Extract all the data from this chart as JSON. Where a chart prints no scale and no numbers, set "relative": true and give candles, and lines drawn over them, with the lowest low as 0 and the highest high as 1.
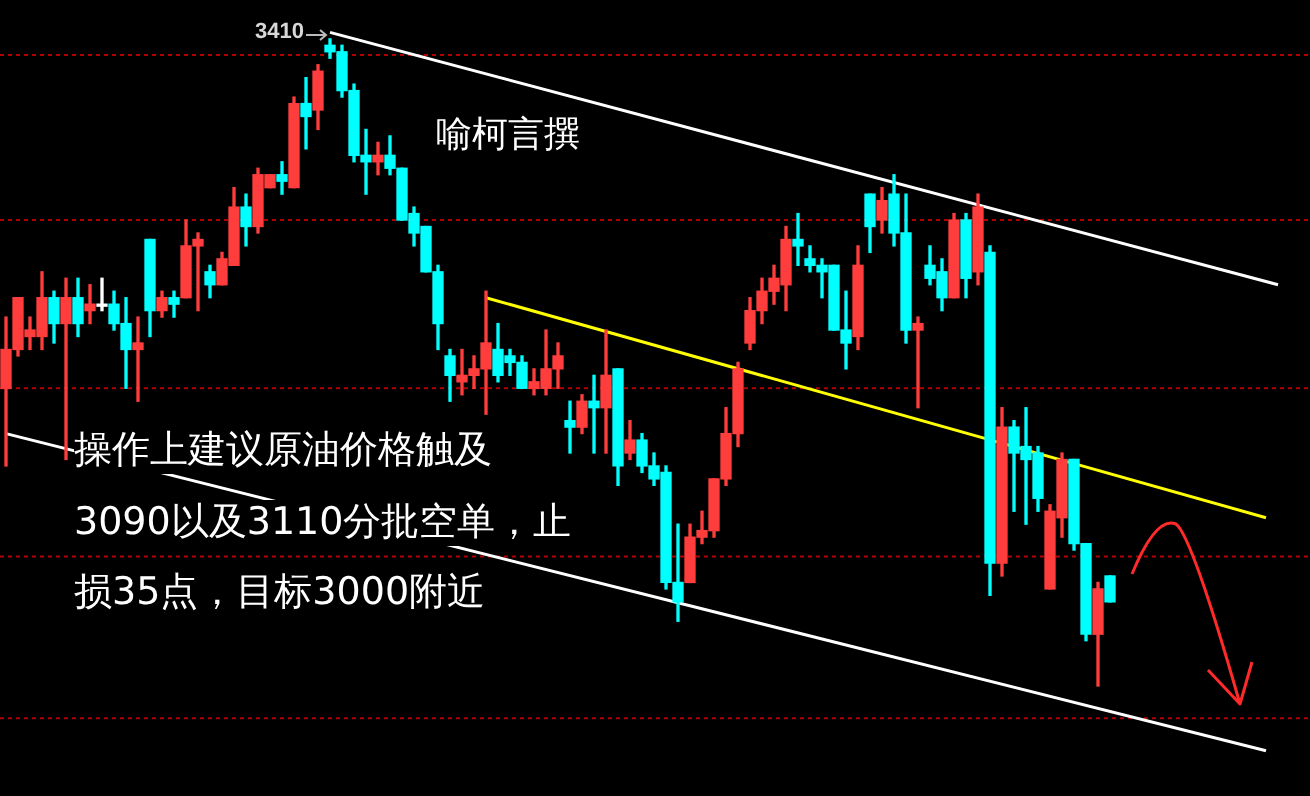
{
  "chart_data": {
    "type": "candlestick",
    "relative": true,
    "categories": [
      null,
      null,
      null,
      null,
      null,
      null,
      null,
      null,
      null,
      null,
      null,
      null,
      null,
      null,
      null,
      null,
      null,
      null,
      null,
      null,
      null,
      null,
      null,
      null,
      null,
      null,
      null,
      null,
      null,
      null,
      null,
      null,
      null,
      null,
      null,
      null,
      null,
      null,
      null,
      null,
      null,
      null,
      null,
      null,
      null,
      null,
      null,
      null,
      null,
      null,
      null,
      null,
      null,
      null,
      null,
      null,
      null,
      null,
      null,
      null,
      null,
      null,
      null,
      null,
      null,
      null,
      null,
      null,
      null,
      null,
      null,
      null,
      null,
      null,
      null,
      null,
      null,
      null,
      null,
      null,
      null,
      null,
      null,
      null,
      null,
      null,
      null,
      null,
      null,
      null,
      null,
      null,
      null,
      null,
      null,
      null,
      null,
      null,
      null,
      null,
      null,
      null,
      null,
      null,
      null,
      null,
      null
    ],
    "ohlc": [
      [
        0.46,
        0.57,
        0.34,
        0.52
      ],
      [
        0.52,
        0.6,
        0.51,
        0.6
      ],
      [
        0.54,
        0.57,
        0.52,
        0.55
      ],
      [
        0.54,
        0.64,
        0.52,
        0.6
      ],
      [
        0.6,
        0.61,
        0.53,
        0.56
      ],
      [
        0.56,
        0.63,
        0.35,
        0.6
      ],
      [
        0.6,
        0.63,
        0.54,
        0.56
      ],
      [
        0.58,
        0.62,
        0.56,
        0.59
      ],
      [
        0.59,
        0.63,
        0.58,
        0.59
      ],
      [
        0.59,
        0.61,
        0.55,
        0.56
      ],
      [
        0.56,
        0.6,
        0.46,
        0.52
      ],
      [
        0.52,
        0.57,
        0.44,
        0.53
      ],
      [
        0.69,
        0.69,
        0.54,
        0.58
      ],
      [
        0.58,
        0.61,
        0.57,
        0.6
      ],
      [
        0.6,
        0.61,
        0.57,
        0.59
      ],
      [
        0.6,
        0.72,
        0.6,
        0.68
      ],
      [
        0.68,
        0.7,
        0.58,
        0.69
      ],
      [
        0.64,
        0.65,
        0.6,
        0.62
      ],
      [
        0.62,
        0.67,
        0.62,
        0.66
      ],
      [
        0.65,
        0.77,
        0.65,
        0.74
      ],
      [
        0.74,
        0.76,
        0.68,
        0.71
      ],
      [
        0.71,
        0.8,
        0.7,
        0.79
      ],
      [
        0.77,
        0.79,
        0.77,
        0.79
      ],
      [
        0.79,
        0.81,
        0.76,
        0.78
      ],
      [
        0.77,
        0.91,
        0.77,
        0.9
      ],
      [
        0.9,
        0.94,
        0.83,
        0.88
      ],
      [
        0.89,
        0.96,
        0.86,
        0.95
      ],
      [
        0.99,
        1,
        0.97,
        0.98
      ],
      [
        0.98,
        0.99,
        0.91,
        0.92
      ],
      [
        0.92,
        0.93,
        0.81,
        0.82
      ],
      [
        0.82,
        0.86,
        0.76,
        0.81
      ],
      [
        0.81,
        0.84,
        0.79,
        0.82
      ],
      [
        0.82,
        0.85,
        0.79,
        0.8
      ],
      [
        0.8,
        0.8,
        0.72,
        0.72
      ],
      [
        0.73,
        0.74,
        0.68,
        0.7
      ],
      [
        0.71,
        0.71,
        0.64,
        0.64
      ],
      [
        0.64,
        0.65,
        0.52,
        0.56
      ],
      [
        0.51,
        0.52,
        0.44,
        0.48
      ],
      [
        0.47,
        0.52,
        0.45,
        0.48
      ],
      [
        0.48,
        0.51,
        0.46,
        0.49
      ],
      [
        0.49,
        0.61,
        0.42,
        0.53
      ],
      [
        0.52,
        0.56,
        0.47,
        0.48
      ],
      [
        0.51,
        0.52,
        0.48,
        0.5
      ],
      [
        0.5,
        0.51,
        0.46,
        0.46
      ],
      [
        0.46,
        0.49,
        0.45,
        0.47
      ],
      [
        0.46,
        0.55,
        0.45,
        0.49
      ],
      [
        0.49,
        0.53,
        0.46,
        0.51
      ],
      [
        0.41,
        0.44,
        0.36,
        0.4
      ],
      [
        0.4,
        0.45,
        0.39,
        0.44
      ],
      [
        0.44,
        0.48,
        0.36,
        0.43
      ],
      [
        0.43,
        0.55,
        0.36,
        0.48
      ],
      [
        0.49,
        0.49,
        0.31,
        0.34
      ],
      [
        0.36,
        0.41,
        0.35,
        0.38
      ],
      [
        0.38,
        0.39,
        0.33,
        0.34
      ],
      [
        0.34,
        0.36,
        0.31,
        0.32
      ],
      [
        0.33,
        0.34,
        0.15,
        0.16
      ],
      [
        0.16,
        0.25,
        0.1,
        0.13
      ],
      [
        0.16,
        0.25,
        0.16,
        0.23
      ],
      [
        0.23,
        0.27,
        0.22,
        0.24
      ],
      [
        0.24,
        0.32,
        0.23,
        0.32
      ],
      [
        0.32,
        0.43,
        0.31,
        0.39
      ],
      [
        0.39,
        0.5,
        0.37,
        0.49
      ],
      [
        0.53,
        0.6,
        0.52,
        0.58
      ],
      [
        0.58,
        0.63,
        0.56,
        0.61
      ],
      [
        0.61,
        0.65,
        0.59,
        0.63
      ],
      [
        0.62,
        0.71,
        0.58,
        0.69
      ],
      [
        0.69,
        0.73,
        0.65,
        0.68
      ],
      [
        0.66,
        0.68,
        0.64,
        0.65
      ],
      [
        0.65,
        0.66,
        0.6,
        0.64
      ],
      [
        0.65,
        0.65,
        0.55,
        0.55
      ],
      [
        0.55,
        0.61,
        0.49,
        0.53
      ],
      [
        0.54,
        0.68,
        0.52,
        0.65
      ],
      [
        0.76,
        0.76,
        0.67,
        0.71
      ],
      [
        0.72,
        0.77,
        0.7,
        0.75
      ],
      [
        0.76,
        0.79,
        0.68,
        0.7
      ],
      [
        0.7,
        0.76,
        0.53,
        0.55
      ],
      [
        0.55,
        0.57,
        0.43,
        0.56
      ],
      [
        0.65,
        0.68,
        0.62,
        0.63
      ],
      [
        0.64,
        0.66,
        0.58,
        0.6
      ],
      [
        0.6,
        0.73,
        0.6,
        0.72
      ],
      [
        0.72,
        0.73,
        0.6,
        0.63
      ],
      [
        0.64,
        0.76,
        0.62,
        0.74
      ],
      [
        0.67,
        0.68,
        0.14,
        0.19
      ],
      [
        0.19,
        0.43,
        0.17,
        0.4
      ],
      [
        0.4,
        0.41,
        0.27,
        0.36
      ],
      [
        0.37,
        0.43,
        0.25,
        0.35
      ],
      [
        0.36,
        0.37,
        0.27,
        0.29
      ],
      [
        0.15,
        0.28,
        0.15,
        0.27
      ],
      [
        0.26,
        0.36,
        0.23,
        0.35
      ],
      [
        0.35,
        0.35,
        0.21,
        0.22
      ],
      [
        0.22,
        0.22,
        0.07,
        0.08
      ],
      [
        0.08,
        0.16,
        0,
        0.15
      ],
      [
        0.17,
        0.17,
        0.13,
        0.13
      ],
      null,
      null,
      null,
      null,
      null,
      null,
      null,
      null,
      null,
      null,
      null,
      null,
      null,
      null
    ],
    "colors": [
      "#ff3d3d",
      "#ff3d3d",
      "#ff3d3d",
      "#ff3d3d",
      "#00ffff",
      "#ff3d3d",
      "#00ffff",
      "#ff3d3d",
      "#ffffff",
      "#00ffff",
      "#00ffff",
      "#ff3d3d",
      "#00ffff",
      "#ff3d3d",
      "#00ffff",
      "#ff3d3d",
      "#ff3d3d",
      "#00ffff",
      "#ff3d3d",
      "#ff3d3d",
      "#00ffff",
      "#ff3d3d",
      "#ff3d3d",
      "#00ffff",
      "#ff3d3d",
      "#00ffff",
      "#ff3d3d",
      "#00ffff",
      "#00ffff",
      "#00ffff",
      "#00ffff",
      "#ff3d3d",
      "#00ffff",
      "#00ffff",
      "#00ffff",
      "#00ffff",
      "#00ffff",
      "#00ffff",
      "#ff3d3d",
      "#ff3d3d",
      "#ff3d3d",
      "#00ffff",
      "#00ffff",
      "#00ffff",
      "#ff3d3d",
      "#ff3d3d",
      "#ff3d3d",
      "#00ffff",
      "#ff3d3d",
      "#00ffff",
      "#ff3d3d",
      "#00ffff",
      "#ff3d3d",
      "#00ffff",
      "#00ffff",
      "#00ffff",
      "#00ffff",
      "#ff3d3d",
      "#ff3d3d",
      "#ff3d3d",
      "#ff3d3d",
      "#ff3d3d",
      "#ff3d3d",
      "#ff3d3d",
      "#ff3d3d",
      "#ff3d3d",
      "#00ffff",
      "#00ffff",
      "#00ffff",
      "#00ffff",
      "#00ffff",
      "#ff3d3d",
      "#00ffff",
      "#ff3d3d",
      "#00ffff",
      "#00ffff",
      "#ff3d3d",
      "#00ffff",
      "#00ffff",
      "#ff3d3d",
      "#00ffff",
      "#ff3d3d",
      "#00ffff",
      "#ff3d3d",
      "#00ffff",
      "#00ffff",
      "#00ffff",
      "#ff3d3d",
      "#ff3d3d",
      "#00ffff",
      "#00ffff",
      "#ff3d3d",
      "#00ffff",
      null,
      null,
      null,
      null,
      null,
      null,
      null,
      null,
      null,
      null,
      null,
      null,
      null,
      null
    ],
    "series": [
      {
        "type": "line",
        "color": "#ffffff",
        "values": [
          null,
          null,
          null,
          null,
          null,
          null,
          null,
          null,
          null,
          null,
          null,
          null,
          null,
          null,
          null,
          null,
          null,
          null,
          null,
          null,
          null,
          null,
          null,
          null,
          null,
          null,
          null,
          1.01,
          null,
          null,
          null,
          null,
          null,
          null,
          null,
          null,
          null,
          null,
          null,
          null,
          null,
          null,
          null,
          null,
          null,
          null,
          null,
          null,
          null,
          null,
          null,
          null,
          null,
          null,
          null,
          null,
          null,
          null,
          null,
          null,
          null,
          null,
          null,
          null,
          null,
          null,
          null,
          null,
          null,
          null,
          null,
          null,
          null,
          null,
          null,
          null,
          null,
          null,
          null,
          null,
          null,
          null,
          null,
          null,
          null,
          null,
          null,
          null,
          null,
          null,
          null,
          null,
          null,
          null,
          null,
          null,
          null,
          null,
          null,
          null,
          null,
          null,
          null,
          null,
          null,
          null,
          0.62
        ]
      },
      {
        "type": "line",
        "color": "#ffffff",
        "values": [
          0.39,
          null,
          null,
          null,
          null,
          null,
          null,
          null,
          null,
          null,
          null,
          null,
          null,
          null,
          null,
          null,
          null,
          null,
          null,
          null,
          null,
          null,
          null,
          null,
          null,
          null,
          null,
          null,
          null,
          null,
          null,
          null,
          null,
          null,
          null,
          null,
          null,
          null,
          null,
          null,
          null,
          null,
          null,
          null,
          null,
          null,
          null,
          null,
          null,
          null,
          null,
          null,
          null,
          null,
          null,
          null,
          null,
          null,
          null,
          null,
          null,
          null,
          null,
          null,
          null,
          null,
          null,
          null,
          null,
          null,
          null,
          null,
          null,
          null,
          null,
          null,
          null,
          null,
          null,
          null,
          null,
          null,
          null,
          null,
          null,
          null,
          null,
          null,
          null,
          null,
          null,
          null,
          null,
          null,
          null,
          null,
          null,
          null,
          null,
          null,
          null,
          null,
          null,
          null,
          null,
          -0.1,
          null
        ]
      },
      {
        "type": "line",
        "color": "#ffff00",
        "values": [
          null,
          null,
          null,
          null,
          null,
          null,
          null,
          null,
          null,
          null,
          null,
          null,
          null,
          null,
          null,
          null,
          null,
          null,
          null,
          null,
          null,
          null,
          null,
          null,
          null,
          null,
          null,
          null,
          null,
          null,
          null,
          null,
          null,
          null,
          null,
          null,
          null,
          null,
          null,
          null,
          0.6,
          null,
          null,
          null,
          null,
          null,
          null,
          null,
          null,
          null,
          null,
          null,
          null,
          null,
          null,
          null,
          null,
          null,
          null,
          null,
          null,
          null,
          null,
          null,
          null,
          null,
          null,
          null,
          null,
          null,
          null,
          null,
          null,
          null,
          null,
          null,
          null,
          null,
          null,
          null,
          null,
          null,
          null,
          null,
          null,
          null,
          null,
          null,
          null,
          null,
          null,
          null,
          null,
          null,
          null,
          null,
          null,
          null,
          null,
          null,
          null,
          null,
          null,
          null,
          null,
          0.26,
          null
        ]
      }
    ],
    "ref_lines": [
      {
        "axis": "y",
        "value": 0.975,
        "color": "#b00000",
        "line_style": "dotted"
      },
      {
        "axis": "y",
        "value": 0.72,
        "color": "#b00000",
        "line_style": "dotted"
      },
      {
        "axis": "y",
        "value": 0.46,
        "color": "#b00000",
        "line_style": "dotted"
      },
      {
        "axis": "y",
        "value": 0.2,
        "color": "#b00000",
        "line_style": "dotted"
      },
      {
        "axis": "y",
        "value": -0.05,
        "color": "#b00000",
        "line_style": "dotted"
      }
    ],
    "annotations": [
      "3410",
      "喻柯言撰",
      "操作上建议原油价格触及",
      "3090以及3110分批空单，止",
      "损35点，目标3000附近"
    ]
  }
}
